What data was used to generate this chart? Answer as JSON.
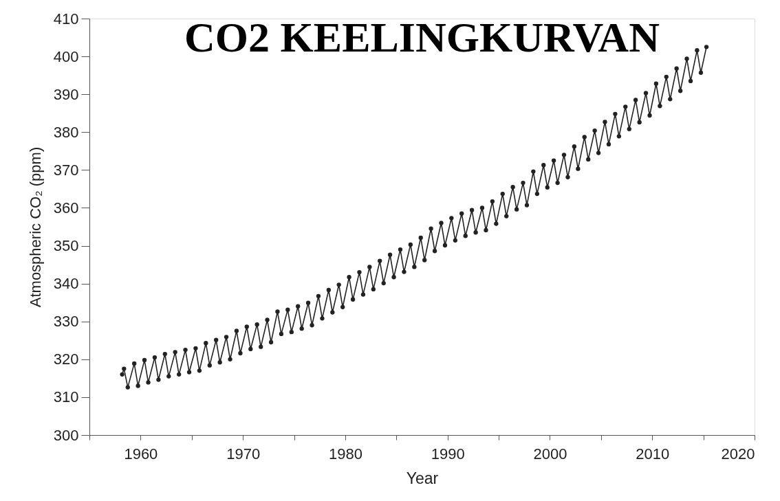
{
  "chart_data": {
    "type": "line",
    "title": "CO2 KEELINGKURVAN",
    "xlabel": "Year",
    "ylabel": "Atmospheric CO₂ (ppm)",
    "xlim": [
      1955,
      2020
    ],
    "ylim": [
      300,
      410
    ],
    "xticks": [
      {
        "value": 1955,
        "label": null
      },
      1960,
      {
        "value": 1965,
        "label": null
      },
      1970,
      {
        "value": 1975,
        "label": null
      },
      1980,
      {
        "value": 1985,
        "label": null
      },
      1990,
      {
        "value": 1995,
        "label": null
      },
      2000,
      {
        "value": 2005,
        "label": null
      },
      2010,
      {
        "value": 2015,
        "label": null
      },
      2020
    ],
    "yticks": [
      300,
      310,
      320,
      330,
      340,
      350,
      360,
      370,
      380,
      390,
      400,
      410
    ],
    "grid": false,
    "legend": false,
    "marker": "circle",
    "line_style": "solid",
    "x": [
      1958.2,
      1958.38,
      1958.75,
      1959.38,
      1959.75,
      1960.38,
      1960.75,
      1961.38,
      1961.75,
      1962.38,
      1962.75,
      1963.38,
      1963.75,
      1964.38,
      1964.75,
      1965.38,
      1965.75,
      1966.38,
      1966.75,
      1967.38,
      1967.75,
      1968.38,
      1968.75,
      1969.38,
      1969.75,
      1970.38,
      1970.75,
      1971.38,
      1971.75,
      1972.38,
      1972.75,
      1973.38,
      1973.75,
      1974.38,
      1974.75,
      1975.38,
      1975.75,
      1976.38,
      1976.75,
      1977.38,
      1977.75,
      1978.38,
      1978.75,
      1979.38,
      1979.75,
      1980.38,
      1980.75,
      1981.38,
      1981.75,
      1982.38,
      1982.75,
      1983.38,
      1983.75,
      1984.38,
      1984.75,
      1985.38,
      1985.75,
      1986.38,
      1986.75,
      1987.38,
      1987.75,
      1988.38,
      1988.75,
      1989.38,
      1989.75,
      1990.38,
      1990.75,
      1991.38,
      1991.75,
      1992.38,
      1992.75,
      1993.38,
      1993.75,
      1994.38,
      1994.75,
      1995.38,
      1995.75,
      1996.38,
      1996.75,
      1997.38,
      1997.75,
      1998.38,
      1998.75,
      1999.38,
      1999.75,
      2000.38,
      2000.75,
      2001.38,
      2001.75,
      2002.38,
      2002.75,
      2003.38,
      2003.75,
      2004.38,
      2004.75,
      2005.38,
      2005.75,
      2006.38,
      2006.75,
      2007.38,
      2007.75,
      2008.38,
      2008.75,
      2009.38,
      2009.75,
      2010.38,
      2010.75,
      2011.38,
      2011.75,
      2012.38,
      2012.75,
      2013.38,
      2013.75,
      2014.38,
      2014.75,
      2015.3
    ],
    "series": [
      {
        "color": "#222222",
        "values": [
          316.0,
          317.5,
          312.6,
          318.9,
          313.0,
          319.8,
          313.9,
          320.5,
          314.6,
          321.4,
          315.5,
          321.9,
          316.0,
          322.5,
          316.6,
          322.9,
          317.0,
          324.3,
          318.4,
          325.1,
          319.2,
          325.9,
          320.0,
          327.5,
          321.6,
          328.6,
          322.7,
          329.2,
          323.3,
          330.4,
          324.5,
          332.6,
          326.7,
          333.1,
          327.2,
          334.0,
          328.1,
          334.9,
          329.0,
          336.7,
          330.8,
          338.3,
          332.4,
          339.7,
          333.8,
          341.7,
          335.8,
          343.0,
          337.1,
          344.4,
          338.5,
          346.0,
          340.1,
          347.6,
          341.7,
          349.0,
          343.1,
          350.3,
          344.4,
          352.1,
          346.2,
          354.5,
          348.6,
          356.0,
          350.1,
          357.3,
          351.4,
          358.5,
          352.6,
          359.4,
          353.5,
          360.0,
          354.1,
          361.7,
          355.8,
          363.7,
          357.8,
          365.5,
          359.6,
          366.6,
          360.7,
          369.6,
          363.7,
          371.3,
          365.4,
          372.5,
          366.6,
          374.0,
          368.1,
          376.2,
          370.3,
          378.7,
          372.8,
          380.4,
          374.5,
          382.7,
          376.8,
          384.8,
          378.9,
          386.7,
          380.8,
          388.5,
          382.6,
          390.3,
          384.4,
          392.8,
          386.9,
          394.6,
          388.7,
          396.8,
          390.9,
          399.4,
          393.5,
          401.6,
          395.7,
          402.5
        ]
      }
    ]
  }
}
